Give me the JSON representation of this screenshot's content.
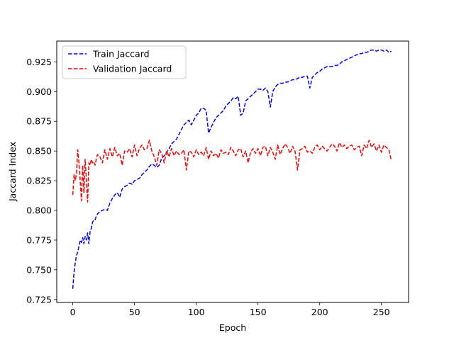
{
  "chart_data": {
    "type": "line",
    "title": "",
    "xlabel": "Epoch",
    "ylabel": "Jaccard Index",
    "xlim": [
      -13,
      272
    ],
    "ylim": [
      0.7225,
      0.9425
    ],
    "x_ticks": [
      0,
      50,
      100,
      150,
      200,
      250
    ],
    "y_ticks": [
      0.725,
      0.75,
      0.775,
      0.8,
      0.825,
      0.85,
      0.875,
      0.9,
      0.925
    ],
    "y_tick_labels": [
      "0.725",
      "0.750",
      "0.775",
      "0.800",
      "0.825",
      "0.850",
      "0.875",
      "0.900",
      "0.925"
    ],
    "grid": false,
    "legend_position": "top-left",
    "series": [
      {
        "name": "Train Jaccard",
        "color": "#0000ff",
        "line_style": "dashed",
        "x": [
          0,
          1,
          2,
          3,
          4,
          5,
          6,
          7,
          8,
          9,
          10,
          11,
          12,
          13,
          14,
          15,
          16,
          17,
          18,
          19,
          20,
          22,
          24,
          26,
          28,
          30,
          32,
          34,
          36,
          38,
          40,
          42,
          44,
          46,
          48,
          50,
          52,
          54,
          56,
          58,
          60,
          62,
          64,
          66,
          68,
          70,
          72,
          74,
          76,
          78,
          80,
          82,
          84,
          86,
          88,
          90,
          92,
          94,
          96,
          98,
          100,
          102,
          104,
          106,
          108,
          110,
          112,
          114,
          116,
          118,
          120,
          122,
          124,
          126,
          128,
          130,
          132,
          134,
          136,
          138,
          140,
          142,
          144,
          146,
          148,
          150,
          152,
          154,
          156,
          158,
          160,
          162,
          164,
          166,
          168,
          170,
          172,
          174,
          176,
          178,
          180,
          182,
          184,
          186,
          188,
          190,
          192,
          194,
          196,
          198,
          200,
          202,
          204,
          206,
          208,
          210,
          212,
          214,
          216,
          218,
          220,
          222,
          224,
          226,
          228,
          230,
          232,
          234,
          236,
          238,
          240,
          242,
          244,
          246,
          248,
          250,
          252,
          254,
          256,
          258
        ],
        "y": [
          0.734,
          0.748,
          0.756,
          0.762,
          0.765,
          0.77,
          0.775,
          0.773,
          0.777,
          0.772,
          0.778,
          0.775,
          0.781,
          0.772,
          0.782,
          0.785,
          0.79,
          0.792,
          0.792,
          0.795,
          0.797,
          0.799,
          0.8,
          0.801,
          0.8,
          0.806,
          0.81,
          0.813,
          0.815,
          0.811,
          0.818,
          0.82,
          0.821,
          0.823,
          0.822,
          0.825,
          0.826,
          0.827,
          0.83,
          0.832,
          0.834,
          0.837,
          0.839,
          0.838,
          0.836,
          0.838,
          0.844,
          0.846,
          0.849,
          0.852,
          0.856,
          0.858,
          0.86,
          0.864,
          0.868,
          0.872,
          0.874,
          0.876,
          0.872,
          0.876,
          0.88,
          0.882,
          0.886,
          0.886,
          0.884,
          0.865,
          0.87,
          0.874,
          0.878,
          0.88,
          0.882,
          0.884,
          0.888,
          0.89,
          0.892,
          0.895,
          0.894,
          0.896,
          0.88,
          0.882,
          0.892,
          0.894,
          0.896,
          0.898,
          0.9,
          0.902,
          0.902,
          0.901,
          0.903,
          0.9,
          0.887,
          0.9,
          0.904,
          0.906,
          0.907,
          0.907,
          0.908,
          0.908,
          0.909,
          0.91,
          0.91,
          0.911,
          0.912,
          0.912,
          0.913,
          0.913,
          0.903,
          0.912,
          0.914,
          0.916,
          0.917,
          0.919,
          0.92,
          0.921,
          0.921,
          0.921,
          0.922,
          0.922,
          0.923,
          0.925,
          0.926,
          0.927,
          0.928,
          0.929,
          0.93,
          0.931,
          0.932,
          0.932,
          0.933,
          0.933,
          0.934,
          0.935,
          0.935,
          0.934,
          0.935,
          0.935,
          0.934,
          0.935,
          0.933,
          0.934
        ]
      },
      {
        "name": "Validation Jaccard",
        "color": "#ff0000",
        "line_style": "dashed",
        "x": [
          0,
          1,
          2,
          3,
          4,
          5,
          6,
          7,
          8,
          9,
          10,
          11,
          12,
          13,
          14,
          15,
          16,
          17,
          18,
          19,
          20,
          22,
          24,
          26,
          28,
          30,
          32,
          34,
          36,
          38,
          40,
          42,
          44,
          46,
          48,
          50,
          52,
          54,
          56,
          58,
          60,
          62,
          64,
          66,
          68,
          70,
          72,
          74,
          76,
          78,
          80,
          82,
          84,
          86,
          88,
          90,
          92,
          94,
          96,
          98,
          100,
          102,
          104,
          106,
          108,
          110,
          112,
          114,
          116,
          118,
          120,
          122,
          124,
          126,
          128,
          130,
          132,
          134,
          136,
          138,
          140,
          142,
          144,
          146,
          148,
          150,
          152,
          154,
          156,
          158,
          160,
          162,
          164,
          166,
          168,
          170,
          172,
          174,
          176,
          178,
          180,
          182,
          184,
          186,
          188,
          190,
          192,
          194,
          196,
          198,
          200,
          202,
          204,
          206,
          208,
          210,
          212,
          214,
          216,
          218,
          220,
          222,
          224,
          226,
          228,
          230,
          232,
          234,
          236,
          238,
          240,
          242,
          244,
          246,
          248,
          250,
          252,
          254,
          256,
          258
        ],
        "y": [
          0.813,
          0.83,
          0.825,
          0.831,
          0.851,
          0.84,
          0.825,
          0.808,
          0.838,
          0.815,
          0.843,
          0.826,
          0.807,
          0.84,
          0.838,
          0.843,
          0.84,
          0.841,
          0.838,
          0.843,
          0.847,
          0.845,
          0.84,
          0.851,
          0.843,
          0.852,
          0.845,
          0.853,
          0.846,
          0.848,
          0.838,
          0.85,
          0.849,
          0.852,
          0.845,
          0.855,
          0.846,
          0.852,
          0.855,
          0.851,
          0.852,
          0.859,
          0.85,
          0.845,
          0.838,
          0.851,
          0.848,
          0.84,
          0.85,
          0.845,
          0.852,
          0.846,
          0.85,
          0.847,
          0.848,
          0.851,
          0.834,
          0.85,
          0.849,
          0.845,
          0.851,
          0.847,
          0.849,
          0.846,
          0.853,
          0.843,
          0.85,
          0.846,
          0.848,
          0.844,
          0.851,
          0.848,
          0.849,
          0.847,
          0.853,
          0.85,
          0.846,
          0.851,
          0.852,
          0.845,
          0.85,
          0.84,
          0.849,
          0.852,
          0.848,
          0.852,
          0.846,
          0.853,
          0.854,
          0.846,
          0.853,
          0.849,
          0.843,
          0.855,
          0.847,
          0.852,
          0.856,
          0.853,
          0.848,
          0.854,
          0.85,
          0.834,
          0.851,
          0.852,
          0.854,
          0.849,
          0.85,
          0.848,
          0.853,
          0.855,
          0.851,
          0.854,
          0.852,
          0.85,
          0.853,
          0.856,
          0.854,
          0.85,
          0.857,
          0.853,
          0.855,
          0.852,
          0.854,
          0.855,
          0.851,
          0.853,
          0.854,
          0.846,
          0.855,
          0.852,
          0.859,
          0.853,
          0.856,
          0.85,
          0.855,
          0.849,
          0.855,
          0.853,
          0.851,
          0.842
        ]
      }
    ]
  }
}
